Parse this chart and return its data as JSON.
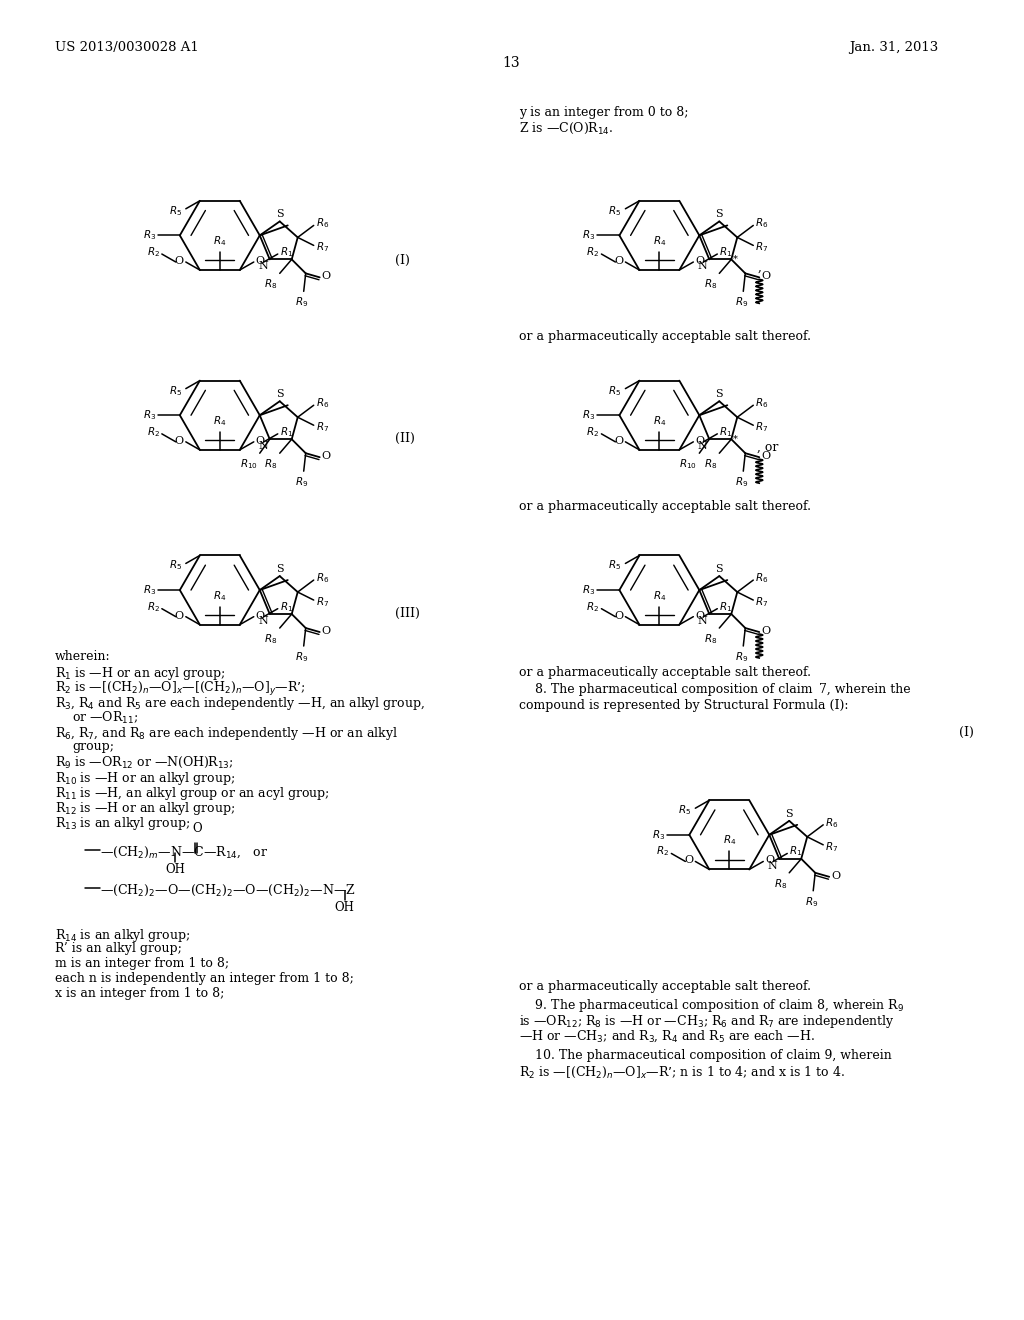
{
  "title_left": "US 2013/0030028 A1",
  "title_right": "Jan. 31, 2013",
  "page_num": "13",
  "bg_color": "#ffffff"
}
